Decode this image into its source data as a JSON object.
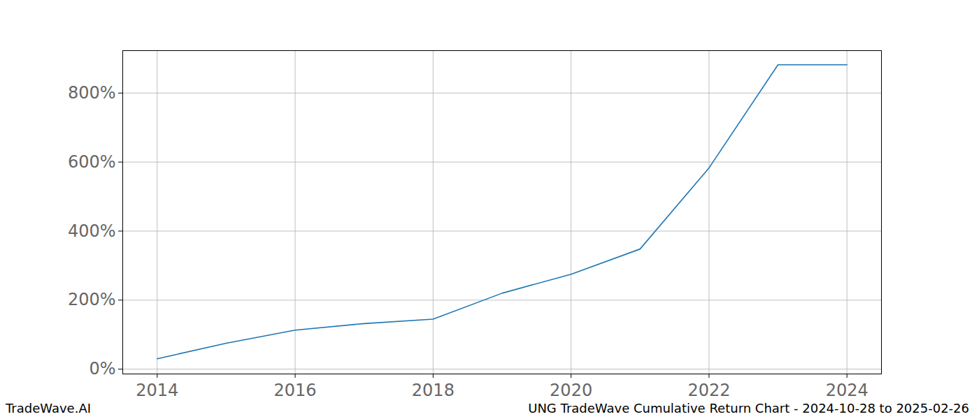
{
  "chart_data": {
    "type": "line",
    "annotations": [
      "TradeWave.AI",
      "UNG TradeWave Cumulative Return Chart - 2024-10-28 to 2025-02-26"
    ],
    "x": [
      2014,
      2015,
      2016,
      2017,
      2018,
      2019,
      2020,
      2021,
      2022,
      2023,
      2024
    ],
    "values": [
      30,
      75,
      113,
      132,
      145,
      220,
      275,
      348,
      583,
      882,
      882
    ],
    "color": "#1f77b4",
    "xlim": [
      2013.5,
      2024.5
    ],
    "xticks": [
      2014,
      2016,
      2018,
      2020,
      2022,
      2024
    ],
    "ylim": [
      -14,
      923
    ],
    "yticks": [
      {
        "value": 0,
        "label": "0%"
      },
      {
        "value": 200,
        "label": "200%"
      },
      {
        "value": 400,
        "label": "400%"
      },
      {
        "value": 600,
        "label": "600%"
      },
      {
        "value": 800,
        "label": "800%"
      }
    ],
    "grid": true
  }
}
